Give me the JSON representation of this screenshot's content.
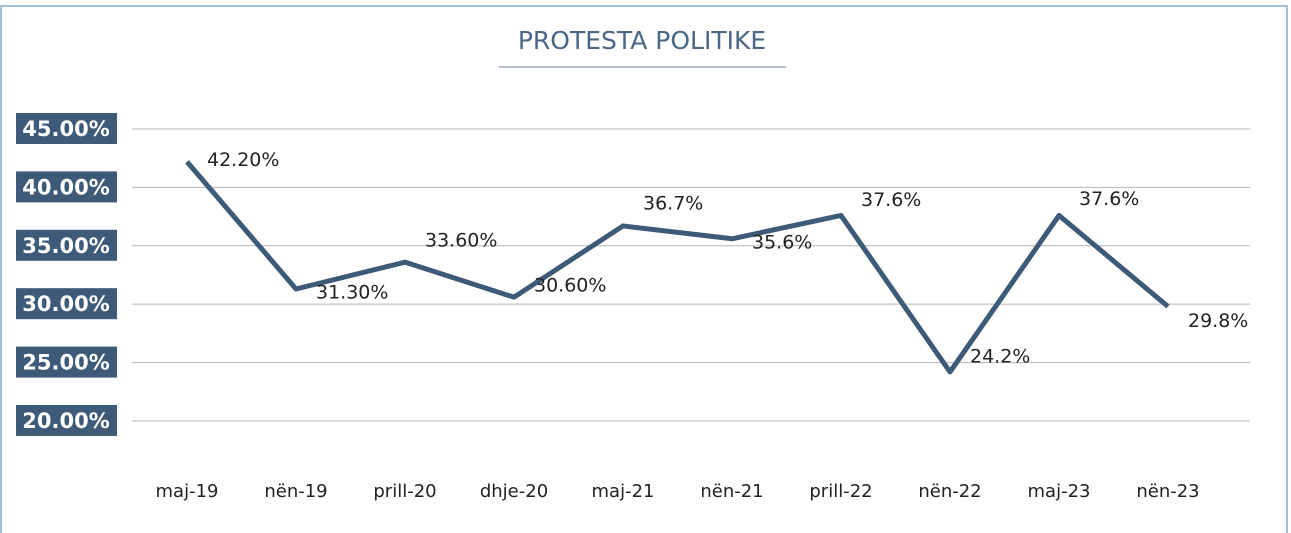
{
  "chart_data": {
    "type": "line",
    "title": "PROTESTA POLITIKE",
    "categories": [
      "maj-19",
      "nën-19",
      "prill-20",
      "dhje-20",
      "maj-21",
      "nën-21",
      "prill-22",
      "nën-22",
      "maj-23",
      "nën-23"
    ],
    "values": [
      42.2,
      31.3,
      33.6,
      30.6,
      36.7,
      35.6,
      37.6,
      24.2,
      37.6,
      29.8
    ],
    "value_labels": [
      "42.20%",
      "31.30%",
      "33.60%",
      "30.60%",
      "36.7%",
      "35.6%",
      "37.6%",
      "24.2%",
      "37.6%",
      "29.8%"
    ],
    "color": "#3d5a78",
    "ylim": [
      17,
      45
    ],
    "yticks": [
      {
        "value": 20,
        "label": "20.00%"
      },
      {
        "value": 25,
        "label": "25.00%"
      },
      {
        "value": 30,
        "label": "30.00%"
      },
      {
        "value": 35,
        "label": "35.00%"
      },
      {
        "value": 40,
        "label": "40.00%"
      },
      {
        "value": 45,
        "label": "45.00%"
      }
    ],
    "grid": true
  }
}
